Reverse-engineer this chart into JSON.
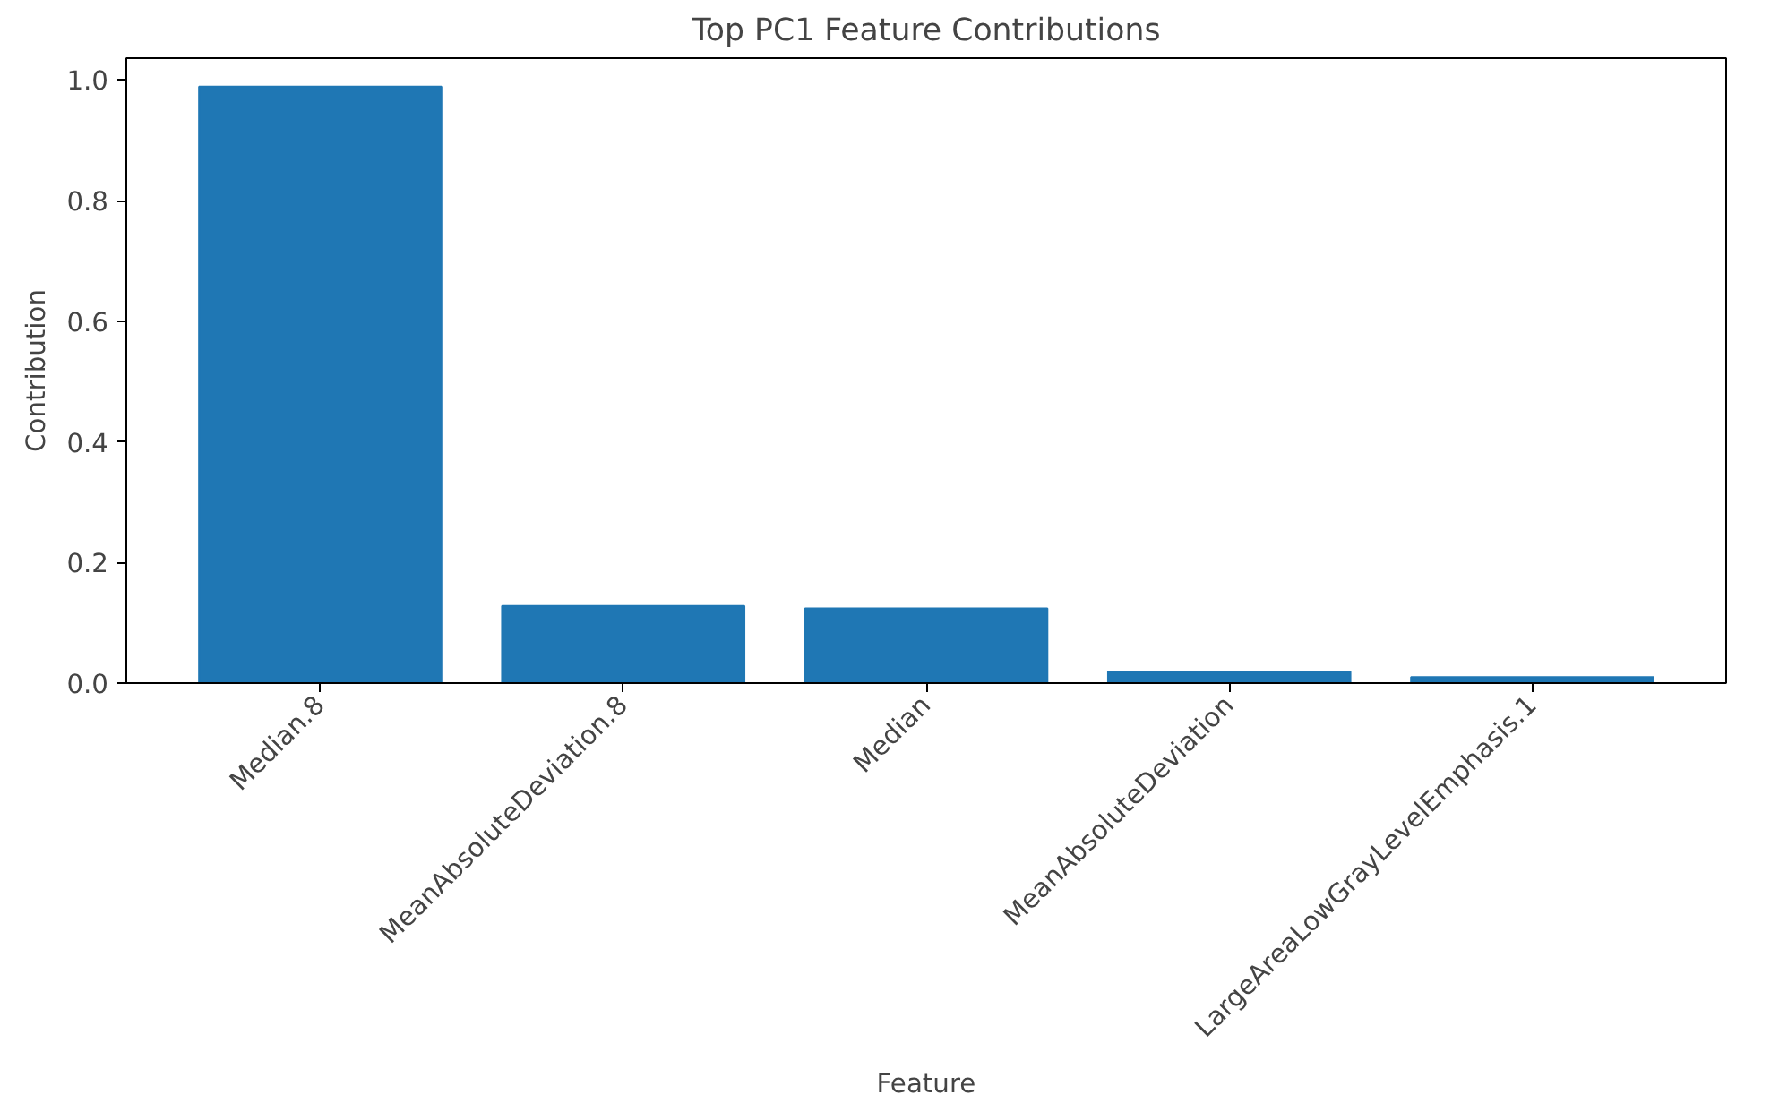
{
  "chart_data": {
    "type": "bar",
    "title": "Top PC1 Feature Contributions",
    "xlabel": "Feature",
    "ylabel": "Contribution",
    "categories": [
      "Median.8",
      "MeanAbsoluteDeviation.8",
      "Median",
      "MeanAbsoluteDeviation",
      "LargeAreaLowGrayLevelEmphasis.1"
    ],
    "values": [
      0.989,
      0.128,
      0.124,
      0.019,
      0.01
    ],
    "color": "#1f77b4",
    "ylim": [
      0,
      1.036
    ],
    "yticks": [
      {
        "value": 0,
        "label": "0.0"
      },
      {
        "value": 0.2,
        "label": "0.2"
      },
      {
        "value": 0.4,
        "label": "0.4"
      },
      {
        "value": 0.6,
        "label": "0.6"
      },
      {
        "value": 0.8,
        "label": "0.8"
      },
      {
        "value": 1.0,
        "label": "1.0"
      }
    ],
    "grid": false
  }
}
